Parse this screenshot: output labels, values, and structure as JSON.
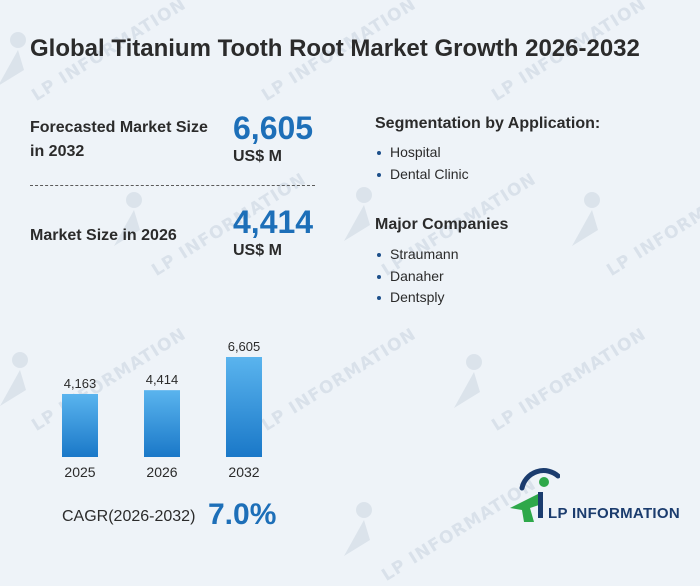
{
  "title": "Global Titanium Tooth Root Market Growth 2026-2032",
  "forecast": {
    "label": "Forecasted Market Size in 2032",
    "value": "6,605",
    "unit": "US$ M"
  },
  "current": {
    "label": "Market Size in 2026",
    "value": "4,414",
    "unit": "US$ M"
  },
  "segmentation": {
    "title": "Segmentation by Application:",
    "items": [
      "Hospital",
      "Dental Clinic"
    ]
  },
  "companies": {
    "title": "Major Companies",
    "items": [
      "Straumann",
      "Danaher",
      "Dentsply"
    ]
  },
  "cagr": {
    "label": "CAGR(2026-2032)",
    "value": "7.0%"
  },
  "logo": {
    "text": "LP INFORMATION"
  },
  "watermark": {
    "text": "LP INFORMATION"
  },
  "colors": {
    "accent": "#1d6fb8",
    "bar_top": "#5ab4ee",
    "bar_bottom": "#1a78c8",
    "logo_green": "#2ea84a",
    "logo_navy": "#1b3c6e"
  },
  "chart_data": {
    "type": "bar",
    "categories": [
      "2025",
      "2026",
      "2032"
    ],
    "values": [
      4163,
      4414,
      6605
    ],
    "value_labels": [
      "4,163",
      "4,414",
      "6,605"
    ],
    "title": "",
    "xlabel": "",
    "ylabel": "",
    "ylim": [
      0,
      6605
    ],
    "grid": false,
    "legend": "none"
  }
}
